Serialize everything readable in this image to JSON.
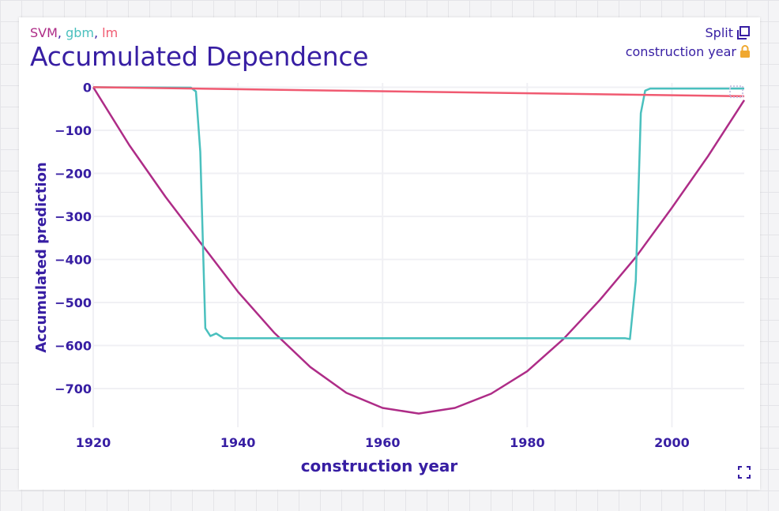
{
  "header": {
    "models": [
      {
        "name": "SVM",
        "color": "#ae2c87"
      },
      {
        "name": "gbm",
        "color": "#4ac0be"
      },
      {
        "name": "lm",
        "color": "#f05a71"
      }
    ],
    "separator": ", ",
    "title": "Accumulated Dependence",
    "split_label": "Split",
    "variable_label": "construction year"
  },
  "icons": {
    "split": "copy-icon",
    "lock": "lock-icon",
    "expand": "fullscreen-icon"
  },
  "colors": {
    "text": "#371ea3",
    "svm": "#ae2c87",
    "gbm": "#4ac0be",
    "lm": "#f05a71",
    "grid": "#f0f0f4",
    "lock": "#f0a830"
  },
  "chart_data": {
    "type": "line",
    "xlabel": "construction year",
    "ylabel": "Accumulated prediction",
    "xlim": [
      1920,
      2010
    ],
    "ylim": [
      -790,
      10
    ],
    "x_ticks": [
      1920,
      1940,
      1960,
      1980,
      2000
    ],
    "y_ticks": [
      0,
      -100,
      -200,
      -300,
      -400,
      -500,
      -600,
      -700
    ],
    "grid": true,
    "series": [
      {
        "name": "SVM",
        "color": "#ae2c87",
        "x": [
          1920,
          1925,
          1930,
          1935,
          1940,
          1945,
          1950,
          1955,
          1960,
          1965,
          1970,
          1975,
          1980,
          1985,
          1990,
          1995,
          2000,
          2005,
          2010
        ],
        "y": [
          0,
          -135,
          -255,
          -365,
          -475,
          -570,
          -650,
          -710,
          -745,
          -758,
          -745,
          -712,
          -660,
          -585,
          -495,
          -395,
          -280,
          -160,
          -30
        ]
      },
      {
        "name": "gbm",
        "color": "#4ac0be",
        "x": [
          1920,
          1933.5,
          1934.2,
          1934.8,
          1935.5,
          1936.2,
          1937.0,
          1938.0,
          1939.0,
          1950,
          1960,
          1970,
          1980,
          1990,
          1993.5,
          1994.2,
          1995.0,
          1995.7,
          1996.3,
          1997.0,
          2010
        ],
        "y": [
          0,
          -1,
          -10,
          -150,
          -560,
          -578,
          -572,
          -583,
          -583,
          -583,
          -583,
          -583,
          -583,
          -583,
          -583,
          -585,
          -450,
          -60,
          -8,
          -3,
          -3
        ]
      },
      {
        "name": "lm",
        "color": "#f05a71",
        "x": [
          1920,
          2010
        ],
        "y": [
          0,
          -21
        ]
      }
    ]
  }
}
